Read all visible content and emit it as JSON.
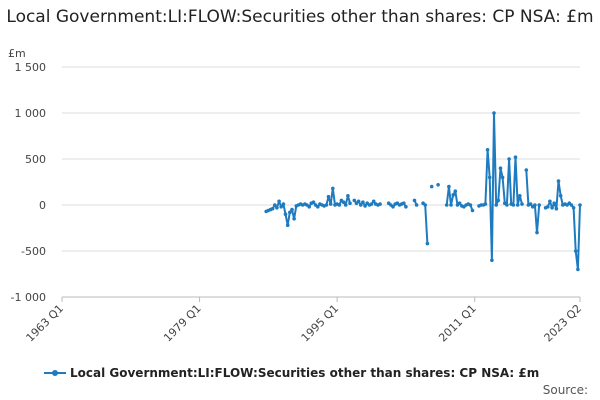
{
  "title": "Local Government:LI:FLOW:Securities other than shares: CP NSA: £m",
  "source_label": "Source:",
  "colors": {
    "series": "#1f7bbf",
    "grid": "#dddddd",
    "axis": "#bbbbbb"
  },
  "chart_data": {
    "type": "line",
    "title": "Local Government:LI:FLOW:Securities other than shares: CP NSA: £m",
    "ylabel": "£m",
    "ylim": [
      -1000,
      1500
    ],
    "yticks": [
      -1000,
      -500,
      0,
      500,
      1000,
      1500
    ],
    "ytick_labels": [
      "-1 000",
      "-500",
      "0",
      "500",
      "1 000",
      "1 500"
    ],
    "xlim": [
      1963.0,
      2023.25
    ],
    "xticks": [
      1963.0,
      1979.0,
      1995.0,
      2011.0,
      2023.25
    ],
    "xtick_labels": [
      "1963 Q1",
      "1979 Q1",
      "1995 Q1",
      "2011 Q1",
      "2023 Q2"
    ],
    "legend": "bottom",
    "grid": true,
    "series": [
      {
        "name": "Local Government:LI:FLOW:Securities other than shares: CP NSA: £m",
        "segments": [
          [
            [
              1986.75,
              -70
            ],
            [
              1987.0,
              -60
            ],
            [
              1987.25,
              -50
            ],
            [
              1987.5,
              -40
            ],
            [
              1987.75,
              0
            ],
            [
              1988.0,
              -30
            ],
            [
              1988.25,
              40
            ],
            [
              1988.5,
              -20
            ],
            [
              1988.75,
              10
            ],
            [
              1989.0,
              -100
            ],
            [
              1989.25,
              -220
            ],
            [
              1989.5,
              -80
            ],
            [
              1989.75,
              -50
            ],
            [
              1990.0,
              -150
            ],
            [
              1990.25,
              -10
            ],
            [
              1990.5,
              0
            ],
            [
              1990.75,
              10
            ],
            [
              1991.0,
              0
            ],
            [
              1991.25,
              10
            ],
            [
              1991.5,
              0
            ],
            [
              1991.75,
              -20
            ],
            [
              1992.0,
              20
            ],
            [
              1992.25,
              30
            ],
            [
              1992.5,
              0
            ],
            [
              1992.75,
              -20
            ],
            [
              1993.0,
              10
            ],
            [
              1993.25,
              0
            ],
            [
              1993.5,
              -10
            ],
            [
              1993.75,
              0
            ],
            [
              1994.0,
              90
            ],
            [
              1994.25,
              10
            ],
            [
              1994.5,
              180
            ],
            [
              1994.75,
              0
            ],
            [
              1995.0,
              10
            ],
            [
              1995.25,
              0
            ],
            [
              1995.5,
              50
            ],
            [
              1995.75,
              30
            ],
            [
              1996.0,
              0
            ],
            [
              1996.25,
              100
            ],
            [
              1996.5,
              20
            ]
          ],
          [
            [
              1997.0,
              50
            ],
            [
              1997.25,
              20
            ],
            [
              1997.5,
              40
            ],
            [
              1997.75,
              0
            ],
            [
              1998.0,
              30
            ],
            [
              1998.25,
              -10
            ],
            [
              1998.5,
              20
            ],
            [
              1998.75,
              0
            ],
            [
              1999.0,
              10
            ],
            [
              1999.25,
              40
            ],
            [
              1999.5,
              10
            ],
            [
              1999.75,
              0
            ],
            [
              2000.0,
              10
            ]
          ],
          [
            [
              2001.0,
              20
            ],
            [
              2001.25,
              0
            ],
            [
              2001.5,
              -20
            ],
            [
              2001.75,
              10
            ],
            [
              2002.0,
              20
            ],
            [
              2002.25,
              0
            ],
            [
              2002.5,
              10
            ],
            [
              2002.75,
              20
            ],
            [
              2003.0,
              -20
            ]
          ],
          [
            [
              2004.0,
              50
            ],
            [
              2004.25,
              0
            ]
          ],
          [
            [
              2005.0,
              20
            ],
            [
              2005.25,
              0
            ],
            [
              2005.5,
              -420
            ]
          ],
          [
            [
              2006.0,
              200
            ]
          ],
          [
            [
              2006.75,
              220
            ]
          ],
          [
            [
              2007.75,
              0
            ],
            [
              2008.0,
              200
            ],
            [
              2008.25,
              0
            ],
            [
              2008.5,
              110
            ],
            [
              2008.75,
              150
            ],
            [
              2009.0,
              0
            ],
            [
              2009.25,
              20
            ],
            [
              2009.5,
              -10
            ],
            [
              2009.75,
              -20
            ],
            [
              2010.0,
              0
            ],
            [
              2010.25,
              10
            ],
            [
              2010.5,
              0
            ],
            [
              2010.75,
              -60
            ]
          ],
          [
            [
              2011.5,
              -10
            ],
            [
              2011.75,
              0
            ],
            [
              2012.0,
              0
            ],
            [
              2012.25,
              10
            ],
            [
              2012.5,
              600
            ],
            [
              2012.75,
              300
            ],
            [
              2013.0,
              -600
            ],
            [
              2013.25,
              1000
            ],
            [
              2013.5,
              0
            ],
            [
              2013.75,
              50
            ],
            [
              2014.0,
              400
            ],
            [
              2014.25,
              300
            ],
            [
              2014.5,
              20
            ],
            [
              2014.75,
              0
            ],
            [
              2015.0,
              500
            ],
            [
              2015.25,
              10
            ],
            [
              2015.5,
              0
            ],
            [
              2015.75,
              520
            ],
            [
              2016.0,
              0
            ],
            [
              2016.25,
              100
            ],
            [
              2016.5,
              10
            ]
          ],
          [
            [
              2017.0,
              380
            ],
            [
              2017.25,
              0
            ],
            [
              2017.5,
              10
            ],
            [
              2017.75,
              -20
            ],
            [
              2018.0,
              0
            ],
            [
              2018.25,
              -300
            ],
            [
              2018.5,
              0
            ]
          ],
          [
            [
              2019.25,
              -30
            ],
            [
              2019.5,
              -20
            ],
            [
              2019.75,
              40
            ],
            [
              2020.0,
              -30
            ],
            [
              2020.25,
              20
            ],
            [
              2020.5,
              -40
            ],
            [
              2020.75,
              260
            ],
            [
              2021.0,
              100
            ],
            [
              2021.25,
              0
            ],
            [
              2021.5,
              10
            ],
            [
              2021.75,
              0
            ],
            [
              2022.0,
              20
            ],
            [
              2022.25,
              0
            ],
            [
              2022.5,
              -30
            ],
            [
              2022.75,
              -500
            ],
            [
              2023.0,
              -700
            ],
            [
              2023.25,
              0
            ]
          ]
        ]
      }
    ]
  }
}
